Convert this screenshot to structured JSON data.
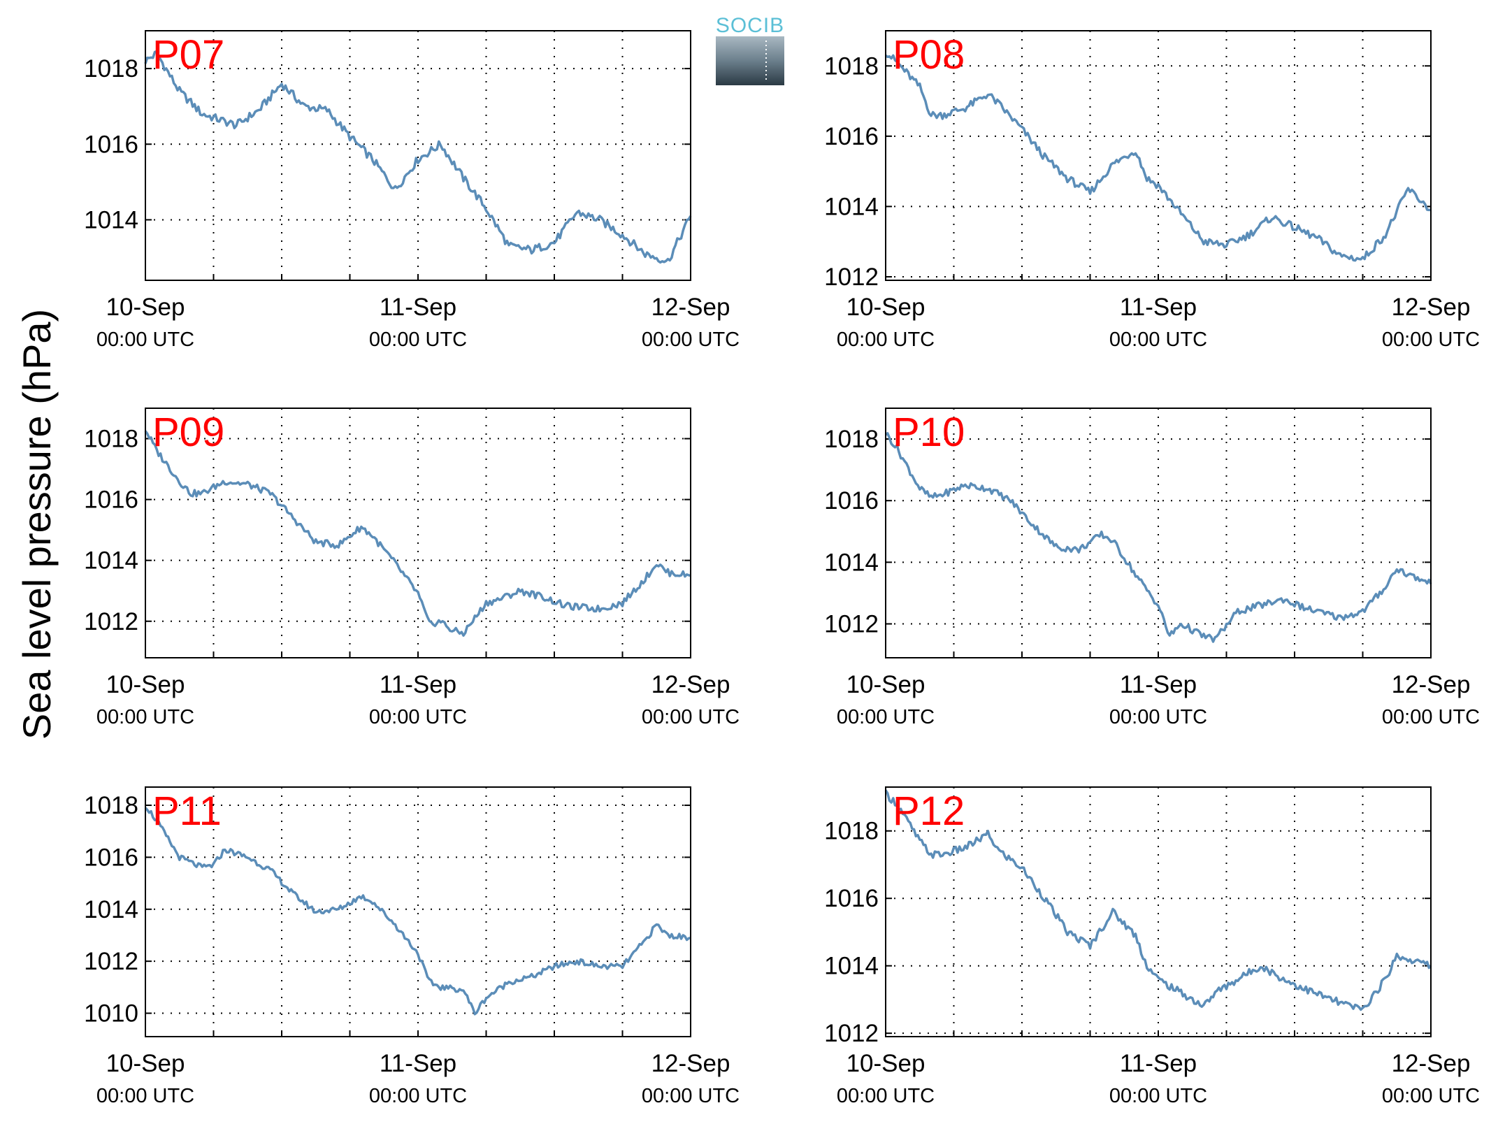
{
  "figure": {
    "ylabel": "Sea level pressure (hPa)",
    "logo_text": "SOCIB"
  },
  "chart_data": [
    {
      "type": "line",
      "panel": "P07",
      "xticks": [
        {
          "date": "10-Sep",
          "time": "00:00 UTC"
        },
        {
          "date": "11-Sep",
          "time": "00:00 UTC"
        },
        {
          "date": "12-Sep",
          "time": "00:00 UTC"
        }
      ],
      "xlim": [
        "10-Sep 00:00",
        "12-Sep 00:00"
      ],
      "ylim": [
        1012.4,
        1019
      ],
      "yticks": [
        1014,
        1016,
        1018
      ],
      "grid": true,
      "series": [
        {
          "color": "#5b8db8",
          "x_hours": [
            0,
            1,
            3,
            5,
            7,
            8,
            10,
            12,
            14,
            16,
            18,
            20,
            22,
            24,
            26,
            28,
            30,
            32,
            34,
            36,
            38,
            40,
            42,
            44,
            46,
            48
          ],
          "values": [
            1018.2,
            1018.4,
            1017.4,
            1016.8,
            1016.6,
            1016.5,
            1016.9,
            1017.6,
            1017.0,
            1016.9,
            1016.2,
            1015.6,
            1014.8,
            1015.6,
            1016.0,
            1015.1,
            1014.3,
            1013.3,
            1013.2,
            1013.4,
            1014.2,
            1014.0,
            1013.6,
            1013.1,
            1012.9,
            1014.1
          ]
        }
      ]
    },
    {
      "type": "line",
      "panel": "P08",
      "xticks": [
        {
          "date": "10-Sep",
          "time": "00:00 UTC"
        },
        {
          "date": "11-Sep",
          "time": "00:00 UTC"
        },
        {
          "date": "12-Sep",
          "time": "00:00 UTC"
        }
      ],
      "xlim": [
        "10-Sep 00:00",
        "12-Sep 00:00"
      ],
      "ylim": [
        1011.9,
        1019
      ],
      "yticks": [
        1012,
        1014,
        1016,
        1018
      ],
      "grid": true,
      "series": [
        {
          "color": "#5b8db8",
          "x_hours": [
            0,
            1,
            3,
            4,
            5,
            7,
            9,
            10,
            12,
            14,
            16,
            18,
            20,
            22,
            23,
            24,
            26,
            28,
            30,
            32,
            34,
            36,
            38,
            40,
            42,
            44,
            46,
            48
          ],
          "values": [
            1018.4,
            1018.1,
            1017.4,
            1016.6,
            1016.6,
            1016.8,
            1017.2,
            1016.9,
            1016.2,
            1015.4,
            1014.8,
            1014.4,
            1015.2,
            1015.6,
            1014.8,
            1014.6,
            1013.8,
            1013.0,
            1012.9,
            1013.2,
            1013.7,
            1013.4,
            1013.1,
            1012.6,
            1012.5,
            1013.2,
            1014.5,
            1013.9
          ]
        }
      ]
    },
    {
      "type": "line",
      "panel": "P09",
      "xticks": [
        {
          "date": "10-Sep",
          "time": "00:00 UTC"
        },
        {
          "date": "11-Sep",
          "time": "00:00 UTC"
        },
        {
          "date": "12-Sep",
          "time": "00:00 UTC"
        }
      ],
      "xlim": [
        "10-Sep 00:00",
        "12-Sep 00:00"
      ],
      "ylim": [
        1010.8,
        1019
      ],
      "yticks": [
        1012,
        1014,
        1016,
        1018
      ],
      "grid": true,
      "series": [
        {
          "color": "#5b8db8",
          "x_hours": [
            0,
            1,
            3,
            4,
            5,
            7,
            9,
            11,
            13,
            15,
            17,
            19,
            20,
            22,
            24,
            25,
            26,
            27,
            28,
            30,
            31,
            33,
            35,
            37,
            40,
            42,
            44,
            45,
            46,
            48
          ],
          "values": [
            1018.3,
            1017.6,
            1016.6,
            1016.2,
            1016.2,
            1016.6,
            1016.5,
            1016.2,
            1015.4,
            1014.6,
            1014.5,
            1015.1,
            1014.8,
            1013.9,
            1012.9,
            1011.9,
            1012.0,
            1011.7,
            1011.6,
            1012.6,
            1012.7,
            1013.0,
            1012.8,
            1012.5,
            1012.4,
            1012.6,
            1013.4,
            1013.9,
            1013.6,
            1013.5
          ]
        }
      ]
    },
    {
      "type": "line",
      "panel": "P10",
      "xticks": [
        {
          "date": "10-Sep",
          "time": "00:00 UTC"
        },
        {
          "date": "11-Sep",
          "time": "00:00 UTC"
        },
        {
          "date": "12-Sep",
          "time": "00:00 UTC"
        }
      ],
      "xlim": [
        "10-Sep 00:00",
        "12-Sep 00:00"
      ],
      "ylim": [
        1010.9,
        1019
      ],
      "yticks": [
        1012,
        1014,
        1016,
        1018
      ],
      "grid": true,
      "series": [
        {
          "color": "#5b8db8",
          "x_hours": [
            0,
            1,
            3,
            4,
            5,
            7,
            9,
            11,
            13,
            15,
            17,
            19,
            20,
            22,
            24,
            25,
            26,
            28,
            29,
            31,
            33,
            35,
            37,
            40,
            42,
            44,
            45,
            46,
            48
          ],
          "values": [
            1018.2,
            1017.7,
            1016.4,
            1016.1,
            1016.2,
            1016.5,
            1016.4,
            1016.0,
            1015.2,
            1014.5,
            1014.4,
            1014.9,
            1014.7,
            1013.6,
            1012.6,
            1011.6,
            1012.0,
            1011.6,
            1011.5,
            1012.4,
            1012.6,
            1012.8,
            1012.5,
            1012.2,
            1012.4,
            1013.2,
            1013.8,
            1013.6,
            1013.3
          ]
        }
      ]
    },
    {
      "type": "line",
      "panel": "P11",
      "xticks": [
        {
          "date": "10-Sep",
          "time": "00:00 UTC"
        },
        {
          "date": "11-Sep",
          "time": "00:00 UTC"
        },
        {
          "date": "12-Sep",
          "time": "00:00 UTC"
        }
      ],
      "xlim": [
        "10-Sep 00:00",
        "12-Sep 00:00"
      ],
      "ylim": [
        1009.1,
        1018.7
      ],
      "yticks": [
        1010,
        1012,
        1014,
        1016,
        1018
      ],
      "grid": true,
      "series": [
        {
          "color": "#5b8db8",
          "x_hours": [
            0,
            1,
            3,
            5,
            6,
            7,
            9,
            11,
            13,
            15,
            17,
            19,
            20,
            22,
            24,
            25,
            26,
            28,
            29,
            30,
            32,
            34,
            36,
            38,
            40,
            42,
            44,
            45,
            46,
            48
          ],
          "values": [
            1018.0,
            1017.4,
            1016.0,
            1015.6,
            1015.7,
            1016.3,
            1016.0,
            1015.5,
            1014.6,
            1013.9,
            1014.0,
            1014.5,
            1014.3,
            1013.4,
            1012.3,
            1011.2,
            1011.0,
            1010.9,
            1010.0,
            1010.6,
            1011.2,
            1011.4,
            1011.8,
            1012.0,
            1011.8,
            1011.8,
            1012.8,
            1013.4,
            1013.0,
            1012.9
          ]
        }
      ]
    },
    {
      "type": "line",
      "panel": "P12",
      "xticks": [
        {
          "date": "10-Sep",
          "time": "00:00 UTC"
        },
        {
          "date": "11-Sep",
          "time": "00:00 UTC"
        },
        {
          "date": "12-Sep",
          "time": "00:00 UTC"
        }
      ],
      "xlim": [
        "10-Sep 00:00",
        "12-Sep 00:00"
      ],
      "ylim": [
        1011.9,
        1019.3
      ],
      "yticks": [
        1012,
        1014,
        1016,
        1018
      ],
      "grid": true,
      "series": [
        {
          "color": "#5b8db8",
          "x_hours": [
            0,
            1,
            3,
            4,
            5,
            7,
            9,
            10,
            12,
            14,
            16,
            18,
            20,
            22,
            23,
            24,
            26,
            28,
            29,
            31,
            33,
            35,
            37,
            40,
            42,
            44,
            45,
            46,
            48
          ],
          "values": [
            1019.1,
            1018.8,
            1017.7,
            1017.3,
            1017.3,
            1017.5,
            1017.9,
            1017.4,
            1016.9,
            1016.0,
            1015.0,
            1014.6,
            1015.6,
            1014.9,
            1014.0,
            1013.6,
            1013.2,
            1012.8,
            1013.2,
            1013.6,
            1014.0,
            1013.6,
            1013.3,
            1012.9,
            1012.7,
            1013.6,
            1014.3,
            1014.2,
            1014.0
          ]
        }
      ]
    }
  ]
}
